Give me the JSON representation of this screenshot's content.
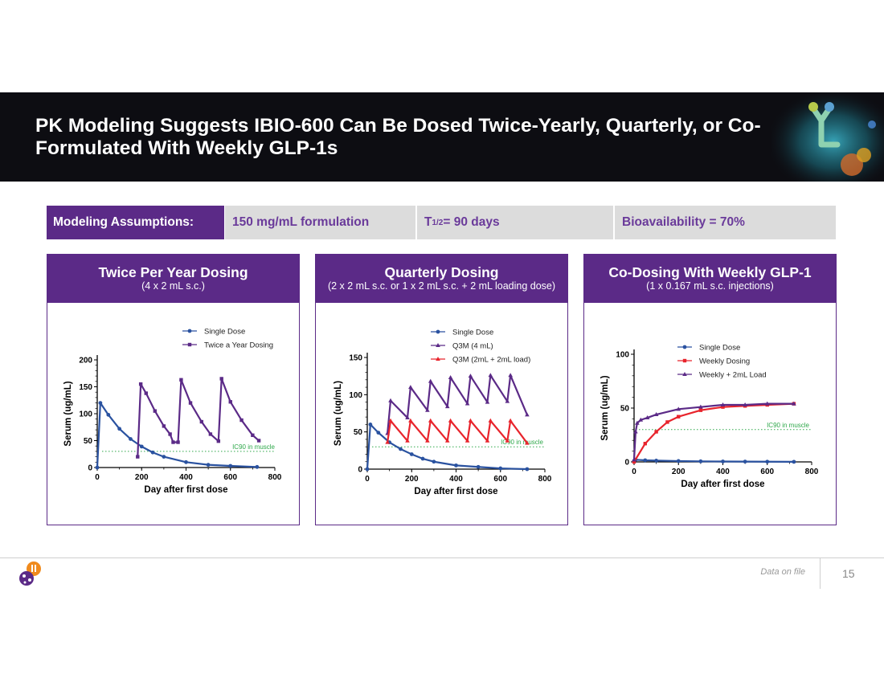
{
  "slide": {
    "title": "PK Modeling Suggests IBIO-600 Can Be Dosed Twice-Yearly, Quarterly, or Co-Formulated With Weekly GLP-1s",
    "footer_note": "Data on file",
    "page_number": "15"
  },
  "assumptions": {
    "label": "Modeling Assumptions:",
    "formulation": "150 mg/mL formulation",
    "half_life_prefix": "T",
    "half_life_sub": "1/2",
    "half_life_value": " = 90 days",
    "bioavailability": "Bioavailability = 70%"
  },
  "colors": {
    "purple": "#5b2a87",
    "blue": "#2a52a0",
    "red": "#e8242c",
    "green": "#2ea84a"
  },
  "panels": [
    {
      "title": "Twice Per Year Dosing",
      "subtitle": "(4 x 2 mL s.c.)"
    },
    {
      "title": "Quarterly Dosing",
      "subtitle": "(2 x 2 mL s.c. or 1 x 2 mL s.c. + 2 mL loading dose)"
    },
    {
      "title": "Co-Dosing With Weekly GLP-1",
      "subtitle": "(1 x 0.167 mL s.c. injections)"
    }
  ],
  "chart_data": [
    {
      "type": "line",
      "xlabel": "Day after first dose",
      "ylabel": "Serum (ug/mL)",
      "xlim": [
        0,
        800
      ],
      "ylim": [
        0,
        200
      ],
      "xticks": [
        0,
        200,
        400,
        600,
        800
      ],
      "yticks": [
        0,
        50,
        100,
        150,
        200
      ],
      "legend_position": "top-right",
      "threshold": {
        "label": "IC90 in muscle",
        "value": 30
      },
      "series": [
        {
          "name": "Single Dose",
          "color": "#2a52a0",
          "marker": "circle",
          "x": [
            0,
            14,
            50,
            100,
            150,
            200,
            250,
            300,
            400,
            500,
            600,
            720
          ],
          "y": [
            0,
            120,
            98,
            72,
            53,
            39,
            28,
            20,
            10,
            5,
            3,
            1
          ]
        },
        {
          "name": "Twice a Year Dosing",
          "color": "#5b2a87",
          "marker": "square",
          "x": [
            182,
            196,
            220,
            260,
            300,
            328,
            342,
            364,
            378,
            420,
            470,
            510,
            546,
            560,
            600,
            650,
            700,
            728
          ],
          "y": [
            20,
            155,
            138,
            105,
            77,
            62,
            47,
            47,
            163,
            120,
            85,
            62,
            49,
            165,
            122,
            88,
            60,
            50
          ]
        }
      ]
    },
    {
      "type": "line",
      "xlabel": "Day after first dose",
      "ylabel": "Serum (ug/mL)",
      "xlim": [
        0,
        800
      ],
      "ylim": [
        0,
        150
      ],
      "xticks": [
        0,
        200,
        400,
        600,
        800
      ],
      "yticks": [
        0,
        50,
        100,
        150
      ],
      "legend_position": "top-right",
      "threshold": {
        "label": "IC90 in muscle",
        "value": 30
      },
      "series": [
        {
          "name": "Single Dose",
          "color": "#2a52a0",
          "marker": "circle",
          "x": [
            0,
            14,
            50,
            100,
            150,
            200,
            250,
            300,
            400,
            500,
            600,
            720
          ],
          "y": [
            0,
            60,
            49,
            36,
            27,
            20,
            14,
            10,
            5,
            3,
            1,
            0
          ]
        },
        {
          "name": "Q3M (4 mL)",
          "color": "#5b2a87",
          "marker": "triangle",
          "x": [
            91,
            105,
            181,
            195,
            271,
            285,
            361,
            375,
            451,
            465,
            541,
            555,
            631,
            645,
            720
          ],
          "y": [
            48,
            92,
            69,
            110,
            79,
            118,
            84,
            123,
            88,
            125,
            90,
            126,
            91,
            126,
            73
          ]
        },
        {
          "name": "Q3M (2mL + 2mL load)",
          "color": "#e8242c",
          "marker": "triangle",
          "x": [
            91,
            105,
            181,
            195,
            271,
            285,
            361,
            375,
            451,
            465,
            541,
            555,
            631,
            645,
            720
          ],
          "y": [
            36,
            65,
            38,
            65,
            38,
            65,
            38,
            65,
            38,
            65,
            38,
            65,
            38,
            65,
            35
          ]
        }
      ]
    },
    {
      "type": "line",
      "xlabel": "Day after first dose",
      "ylabel": "Serum (ug/mL)",
      "xlim": [
        0,
        800
      ],
      "ylim": [
        0,
        100
      ],
      "xticks": [
        0,
        200,
        400,
        600,
        800
      ],
      "yticks": [
        0,
        50,
        100
      ],
      "legend_position": "top-right",
      "threshold": {
        "label": "IC90 in muscle",
        "value": 30
      },
      "series": [
        {
          "name": "Single Dose",
          "color": "#2a52a0",
          "marker": "circle",
          "x": [
            0,
            7,
            50,
            100,
            200,
            300,
            400,
            500,
            600,
            720
          ],
          "y": [
            1,
            2,
            1.5,
            1.2,
            0.8,
            0.5,
            0.4,
            0.3,
            0.2,
            0.1
          ]
        },
        {
          "name": "Weekly Dosing",
          "color": "#e8242c",
          "marker": "square",
          "x": [
            0,
            50,
            100,
            150,
            200,
            300,
            400,
            500,
            600,
            720
          ],
          "y": [
            0,
            17,
            28,
            37,
            42,
            48,
            51,
            52,
            53,
            54
          ]
        },
        {
          "name": "Weekly + 2mL Load",
          "color": "#5b2a87",
          "marker": "triangle",
          "x": [
            0,
            7,
            14,
            30,
            60,
            100,
            200,
            300,
            400,
            500,
            600,
            720
          ],
          "y": [
            2,
            28,
            36,
            39,
            41,
            44,
            49,
            51,
            53,
            53,
            54,
            54
          ]
        }
      ]
    }
  ]
}
